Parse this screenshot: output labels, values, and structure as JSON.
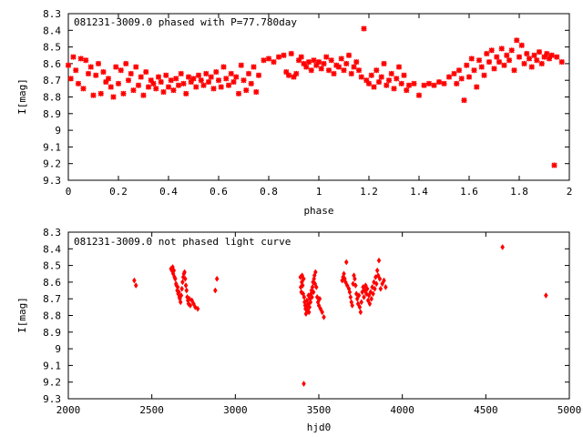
{
  "marker_color": "#ff0000",
  "chart_data": [
    {
      "type": "scatter",
      "title": "081231-3009.0 phased with P=77.780day",
      "xlabel": "phase",
      "ylabel": "I[mag]",
      "xlim": [
        0,
        2
      ],
      "ylim": [
        8.3,
        9.3
      ],
      "y_inverted": true,
      "marker": "x-cross",
      "xticks": [
        0,
        0.2,
        0.4,
        0.6,
        0.8,
        1,
        1.2,
        1.4,
        1.6,
        1.8,
        2
      ],
      "xtick_labels": [
        "0",
        "0.2",
        "0.4",
        "0.6",
        "0.8",
        "1",
        "1.2",
        "1.4",
        "1.6",
        "1.8",
        "2"
      ],
      "yticks": [
        8.3,
        8.4,
        8.5,
        8.6,
        8.7,
        8.8,
        8.9,
        9.0,
        9.1,
        9.2,
        9.3
      ],
      "ytick_labels": [
        "8.3",
        "8.4",
        "8.5",
        "8.6",
        "8.7",
        "8.8",
        "8.9",
        "9",
        "9.1",
        "9.2",
        "9.3"
      ],
      "points": [
        [
          0.0,
          8.61
        ],
        [
          0.01,
          8.69
        ],
        [
          0.02,
          8.56
        ],
        [
          0.03,
          8.64
        ],
        [
          0.04,
          8.72
        ],
        [
          0.05,
          8.57
        ],
        [
          0.06,
          8.75
        ],
        [
          0.07,
          8.58
        ],
        [
          0.08,
          8.66
        ],
        [
          0.09,
          8.62
        ],
        [
          0.1,
          8.79
        ],
        [
          0.11,
          8.67
        ],
        [
          0.12,
          8.6
        ],
        [
          0.13,
          8.78
        ],
        [
          0.14,
          8.65
        ],
        [
          0.15,
          8.71
        ],
        [
          0.16,
          8.69
        ],
        [
          0.17,
          8.74
        ],
        [
          0.18,
          8.8
        ],
        [
          0.19,
          8.62
        ],
        [
          0.2,
          8.72
        ],
        [
          0.21,
          8.64
        ],
        [
          0.22,
          8.78
        ],
        [
          0.23,
          8.6
        ],
        [
          0.24,
          8.7
        ],
        [
          0.25,
          8.66
        ],
        [
          0.26,
          8.76
        ],
        [
          0.27,
          8.62
        ],
        [
          0.28,
          8.73
        ],
        [
          0.29,
          8.68
        ],
        [
          0.3,
          8.79
        ],
        [
          0.31,
          8.65
        ],
        [
          0.32,
          8.74
        ],
        [
          0.33,
          8.7
        ],
        [
          0.34,
          8.72
        ],
        [
          0.35,
          8.75
        ],
        [
          0.36,
          8.68
        ],
        [
          0.37,
          8.71
        ],
        [
          0.38,
          8.77
        ],
        [
          0.39,
          8.67
        ],
        [
          0.4,
          8.74
        ],
        [
          0.41,
          8.7
        ],
        [
          0.42,
          8.76
        ],
        [
          0.43,
          8.69
        ],
        [
          0.44,
          8.73
        ],
        [
          0.45,
          8.66
        ],
        [
          0.46,
          8.72
        ],
        [
          0.47,
          8.78
        ],
        [
          0.48,
          8.68
        ],
        [
          0.49,
          8.71
        ],
        [
          0.5,
          8.69
        ],
        [
          0.51,
          8.74
        ],
        [
          0.52,
          8.67
        ],
        [
          0.53,
          8.7
        ],
        [
          0.54,
          8.73
        ],
        [
          0.55,
          8.66
        ],
        [
          0.56,
          8.71
        ],
        [
          0.57,
          8.68
        ],
        [
          0.58,
          8.75
        ],
        [
          0.59,
          8.65
        ],
        [
          0.6,
          8.7
        ],
        [
          0.61,
          8.74
        ],
        [
          0.62,
          8.62
        ],
        [
          0.63,
          8.69
        ],
        [
          0.64,
          8.73
        ],
        [
          0.65,
          8.66
        ],
        [
          0.66,
          8.71
        ],
        [
          0.67,
          8.68
        ],
        [
          0.68,
          8.78
        ],
        [
          0.69,
          8.61
        ],
        [
          0.7,
          8.7
        ],
        [
          0.71,
          8.76
        ],
        [
          0.72,
          8.66
        ],
        [
          0.73,
          8.72
        ],
        [
          0.74,
          8.62
        ],
        [
          0.75,
          8.77
        ],
        [
          0.76,
          8.67
        ],
        [
          0.78,
          8.58
        ],
        [
          0.8,
          8.57
        ],
        [
          0.82,
          8.59
        ],
        [
          0.84,
          8.56
        ],
        [
          0.86,
          8.55
        ],
        [
          0.87,
          8.65
        ],
        [
          0.88,
          8.67
        ],
        [
          0.89,
          8.54
        ],
        [
          0.9,
          8.68
        ],
        [
          0.91,
          8.66
        ],
        [
          0.92,
          8.58
        ],
        [
          0.93,
          8.56
        ],
        [
          0.94,
          8.6
        ],
        [
          0.95,
          8.62
        ],
        [
          0.96,
          8.59
        ],
        [
          0.97,
          8.64
        ],
        [
          0.98,
          8.58
        ],
        [
          0.99,
          8.61
        ],
        [
          1.0,
          8.59
        ],
        [
          1.01,
          8.63
        ],
        [
          1.02,
          8.6
        ],
        [
          1.03,
          8.56
        ],
        [
          1.04,
          8.64
        ],
        [
          1.05,
          8.58
        ],
        [
          1.06,
          8.66
        ],
        [
          1.07,
          8.61
        ],
        [
          1.08,
          8.62
        ],
        [
          1.09,
          8.57
        ],
        [
          1.1,
          8.64
        ],
        [
          1.11,
          8.6
        ],
        [
          1.12,
          8.55
        ],
        [
          1.13,
          8.66
        ],
        [
          1.14,
          8.62
        ],
        [
          1.15,
          8.59
        ],
        [
          1.16,
          8.64
        ],
        [
          1.17,
          8.68
        ],
        [
          1.18,
          8.39
        ],
        [
          1.19,
          8.7
        ],
        [
          1.2,
          8.72
        ],
        [
          1.21,
          8.67
        ],
        [
          1.22,
          8.74
        ],
        [
          1.23,
          8.64
        ],
        [
          1.24,
          8.71
        ],
        [
          1.25,
          8.68
        ],
        [
          1.26,
          8.6
        ],
        [
          1.27,
          8.73
        ],
        [
          1.28,
          8.7
        ],
        [
          1.29,
          8.66
        ],
        [
          1.3,
          8.75
        ],
        [
          1.31,
          8.69
        ],
        [
          1.32,
          8.62
        ],
        [
          1.33,
          8.72
        ],
        [
          1.34,
          8.67
        ],
        [
          1.35,
          8.76
        ],
        [
          1.36,
          8.73
        ],
        [
          1.38,
          8.72
        ],
        [
          1.4,
          8.79
        ],
        [
          1.42,
          8.73
        ],
        [
          1.44,
          8.72
        ],
        [
          1.46,
          8.73
        ],
        [
          1.48,
          8.71
        ],
        [
          1.5,
          8.72
        ],
        [
          1.52,
          8.68
        ],
        [
          1.54,
          8.66
        ],
        [
          1.55,
          8.72
        ],
        [
          1.56,
          8.64
        ],
        [
          1.57,
          8.69
        ],
        [
          1.58,
          8.82
        ],
        [
          1.59,
          8.61
        ],
        [
          1.6,
          8.68
        ],
        [
          1.61,
          8.57
        ],
        [
          1.62,
          8.64
        ],
        [
          1.63,
          8.74
        ],
        [
          1.64,
          8.58
        ],
        [
          1.65,
          8.62
        ],
        [
          1.66,
          8.67
        ],
        [
          1.67,
          8.54
        ],
        [
          1.68,
          8.59
        ],
        [
          1.69,
          8.52
        ],
        [
          1.7,
          8.63
        ],
        [
          1.71,
          8.56
        ],
        [
          1.72,
          8.59
        ],
        [
          1.73,
          8.51
        ],
        [
          1.74,
          8.61
        ],
        [
          1.75,
          8.55
        ],
        [
          1.76,
          8.58
        ],
        [
          1.77,
          8.52
        ],
        [
          1.78,
          8.64
        ],
        [
          1.79,
          8.46
        ],
        [
          1.8,
          8.56
        ],
        [
          1.81,
          8.49
        ],
        [
          1.82,
          8.6
        ],
        [
          1.83,
          8.54
        ],
        [
          1.84,
          8.57
        ],
        [
          1.85,
          8.62
        ],
        [
          1.86,
          8.55
        ],
        [
          1.87,
          8.58
        ],
        [
          1.88,
          8.53
        ],
        [
          1.89,
          8.6
        ],
        [
          1.9,
          8.56
        ],
        [
          1.91,
          8.54
        ],
        [
          1.92,
          8.57
        ],
        [
          1.93,
          8.55
        ],
        [
          1.94,
          9.21
        ],
        [
          1.95,
          8.56
        ],
        [
          1.97,
          8.59
        ]
      ]
    },
    {
      "type": "scatter",
      "title": "081231-3009.0 not phased light curve",
      "xlabel": "hjd0",
      "ylabel": "I[mag]",
      "xlim": [
        2000,
        5000
      ],
      "ylim": [
        8.3,
        9.3
      ],
      "y_inverted": true,
      "marker": "diamond",
      "xticks": [
        2000,
        2500,
        3000,
        3500,
        4000,
        4500,
        5000
      ],
      "xtick_labels": [
        "2000",
        "2500",
        "3000",
        "3500",
        "4000",
        "4500",
        "5000"
      ],
      "yticks": [
        8.3,
        8.4,
        8.5,
        8.6,
        8.7,
        8.8,
        8.9,
        9.0,
        9.1,
        9.2,
        9.3
      ],
      "ytick_labels": [
        "8.3",
        "8.4",
        "8.5",
        "8.6",
        "8.7",
        "8.8",
        "8.9",
        "9",
        "9.1",
        "9.2",
        "9.3"
      ],
      "points": [
        [
          2395,
          8.59
        ],
        [
          2405,
          8.62
        ],
        [
          2615,
          8.52
        ],
        [
          2620,
          8.53
        ],
        [
          2625,
          8.51
        ],
        [
          2628,
          8.55
        ],
        [
          2632,
          8.53
        ],
        [
          2636,
          8.57
        ],
        [
          2640,
          8.58
        ],
        [
          2645,
          8.61
        ],
        [
          2648,
          8.62
        ],
        [
          2652,
          8.65
        ],
        [
          2655,
          8.63
        ],
        [
          2658,
          8.67
        ],
        [
          2662,
          8.66
        ],
        [
          2665,
          8.69
        ],
        [
          2668,
          8.7
        ],
        [
          2672,
          8.72
        ],
        [
          2676,
          8.68
        ],
        [
          2680,
          8.64
        ],
        [
          2684,
          8.6
        ],
        [
          2688,
          8.57
        ],
        [
          2692,
          8.55
        ],
        [
          2696,
          8.54
        ],
        [
          2700,
          8.58
        ],
        [
          2704,
          8.62
        ],
        [
          2708,
          8.65
        ],
        [
          2712,
          8.69
        ],
        [
          2716,
          8.71
        ],
        [
          2720,
          8.73
        ],
        [
          2725,
          8.7
        ],
        [
          2730,
          8.74
        ],
        [
          2740,
          8.71
        ],
        [
          2750,
          8.73
        ],
        [
          2760,
          8.75
        ],
        [
          2775,
          8.76
        ],
        [
          2880,
          8.65
        ],
        [
          2890,
          8.58
        ],
        [
          3390,
          8.57
        ],
        [
          3392,
          8.63
        ],
        [
          3395,
          8.66
        ],
        [
          3398,
          8.6
        ],
        [
          3400,
          8.56
        ],
        [
          3403,
          8.62
        ],
        [
          3406,
          8.67
        ],
        [
          3409,
          8.58
        ],
        [
          3410,
          9.21
        ],
        [
          3412,
          8.69
        ],
        [
          3415,
          8.72
        ],
        [
          3418,
          8.74
        ],
        [
          3420,
          8.76
        ],
        [
          3423,
          8.79
        ],
        [
          3426,
          8.75
        ],
        [
          3429,
          8.71
        ],
        [
          3432,
          8.77
        ],
        [
          3435,
          8.73
        ],
        [
          3438,
          8.68
        ],
        [
          3441,
          8.78
        ],
        [
          3444,
          8.75
        ],
        [
          3447,
          8.7
        ],
        [
          3450,
          8.72
        ],
        [
          3453,
          8.67
        ],
        [
          3456,
          8.65
        ],
        [
          3459,
          8.69
        ],
        [
          3462,
          8.63
        ],
        [
          3465,
          8.6
        ],
        [
          3468,
          8.66
        ],
        [
          3471,
          8.58
        ],
        [
          3474,
          8.56
        ],
        [
          3477,
          8.61
        ],
        [
          3480,
          8.54
        ],
        [
          3485,
          8.63
        ],
        [
          3490,
          8.69
        ],
        [
          3495,
          8.72
        ],
        [
          3500,
          8.74
        ],
        [
          3505,
          8.7
        ],
        [
          3510,
          8.76
        ],
        [
          3520,
          8.78
        ],
        [
          3530,
          8.81
        ],
        [
          3640,
          8.59
        ],
        [
          3645,
          8.57
        ],
        [
          3650,
          8.55
        ],
        [
          3655,
          8.58
        ],
        [
          3660,
          8.6
        ],
        [
          3665,
          8.48
        ],
        [
          3670,
          8.62
        ],
        [
          3680,
          8.64
        ],
        [
          3685,
          8.66
        ],
        [
          3690,
          8.69
        ],
        [
          3695,
          8.72
        ],
        [
          3700,
          8.74
        ],
        [
          3705,
          8.61
        ],
        [
          3710,
          8.56
        ],
        [
          3715,
          8.58
        ],
        [
          3720,
          8.62
        ],
        [
          3725,
          8.67
        ],
        [
          3730,
          8.7
        ],
        [
          3735,
          8.73
        ],
        [
          3740,
          8.68
        ],
        [
          3745,
          8.75
        ],
        [
          3750,
          8.78
        ],
        [
          3755,
          8.72
        ],
        [
          3760,
          8.66
        ],
        [
          3765,
          8.63
        ],
        [
          3770,
          8.69
        ],
        [
          3775,
          8.65
        ],
        [
          3780,
          8.62
        ],
        [
          3785,
          8.67
        ],
        [
          3790,
          8.64
        ],
        [
          3795,
          8.71
        ],
        [
          3800,
          8.68
        ],
        [
          3805,
          8.73
        ],
        [
          3810,
          8.66
        ],
        [
          3815,
          8.7
        ],
        [
          3820,
          8.63
        ],
        [
          3825,
          8.67
        ],
        [
          3830,
          8.6
        ],
        [
          3835,
          8.64
        ],
        [
          3840,
          8.57
        ],
        [
          3845,
          8.61
        ],
        [
          3850,
          8.53
        ],
        [
          3855,
          8.56
        ],
        [
          3860,
          8.47
        ],
        [
          3865,
          8.58
        ],
        [
          3870,
          8.64
        ],
        [
          3880,
          8.61
        ],
        [
          3890,
          8.59
        ],
        [
          3900,
          8.63
        ],
        [
          4600,
          8.39
        ],
        [
          4860,
          8.68
        ]
      ]
    }
  ]
}
